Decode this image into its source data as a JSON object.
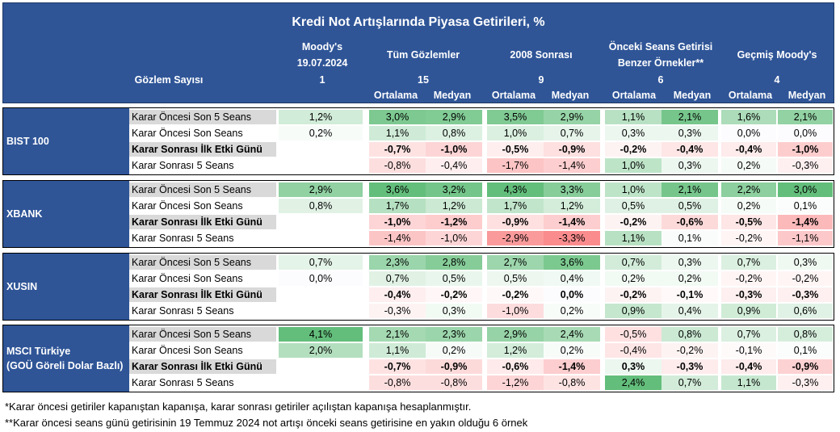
{
  "title": "Kredi Not Artışlarında Piyasa Getirileri, %",
  "header": {
    "obs_label": "Gözlem Sayısı",
    "columns": [
      {
        "name": "Moody's",
        "name2": "19.07.2024",
        "count": "1"
      },
      {
        "name": "Tüm Gözlemler",
        "name2": "",
        "count": "15"
      },
      {
        "name": "2008 Sonrası",
        "name2": "",
        "count": "9"
      },
      {
        "name": "Önceki Seans Getirisi",
        "name2": "Benzer Örnekler**",
        "count": "6"
      },
      {
        "name": "Geçmiş Moody's",
        "name2": "",
        "count": "4"
      }
    ],
    "sub_avg": "Ortalama",
    "sub_med": "Medyan"
  },
  "blocks": [
    {
      "name": "BIST 100",
      "rows": [
        {
          "label": "Karar Öncesi Son 5 Seans",
          "values": [
            "1,2%",
            "3,0%",
            "2,9%",
            "3,5%",
            "2,9%",
            "1,1%",
            "2,1%",
            "1,6%",
            "2,1%"
          ]
        },
        {
          "label": "Karar Öncesi Son Seans",
          "values": [
            "0,2%",
            "1,1%",
            "0,8%",
            "1,0%",
            "0,7%",
            "0,3%",
            "0,3%",
            "0,0%",
            "0,0%"
          ]
        },
        {
          "label": "Karar Sonrası İlk Etki Günü",
          "values": [
            "",
            "-0,7%",
            "-1,0%",
            "-0,5%",
            "-0,9%",
            "-0,2%",
            "-0,4%",
            "-0,4%",
            "-1,0%"
          ]
        },
        {
          "label": "Karar Sonrası 5 Seans",
          "values": [
            "",
            "-0,8%",
            "-0,4%",
            "-1,7%",
            "-1,4%",
            "1,0%",
            "0,3%",
            "0,2%",
            "-0,3%"
          ]
        }
      ]
    },
    {
      "name": "XBANK",
      "rows": [
        {
          "label": "Karar Öncesi Son 5 Seans",
          "values": [
            "2,9%",
            "3,6%",
            "3,2%",
            "4,3%",
            "3,3%",
            "1,0%",
            "2,1%",
            "2,2%",
            "3,0%"
          ]
        },
        {
          "label": "Karar Öncesi Son Seans",
          "values": [
            "0,8%",
            "1,7%",
            "1,2%",
            "1,7%",
            "1,2%",
            "0,5%",
            "0,5%",
            "0,2%",
            "0,1%"
          ]
        },
        {
          "label": "Karar Sonrası İlk Etki Günü",
          "values": [
            "",
            "-1,0%",
            "-1,2%",
            "-0,9%",
            "-1,4%",
            "-0,2%",
            "-0,6%",
            "-0,5%",
            "-1,4%"
          ]
        },
        {
          "label": "Karar Sonrası 5 Seans",
          "values": [
            "",
            "-1,4%",
            "-1,0%",
            "-2,9%",
            "-3,3%",
            "1,1%",
            "0,1%",
            "-0,2%",
            "-1,1%"
          ]
        }
      ]
    },
    {
      "name": "XUSIN",
      "rows": [
        {
          "label": "Karar Öncesi Son 5 Seans",
          "values": [
            "0,7%",
            "2,3%",
            "2,8%",
            "2,7%",
            "3,6%",
            "0,7%",
            "0,3%",
            "0,7%",
            "0,3%"
          ]
        },
        {
          "label": "Karar Öncesi Son Seans",
          "values": [
            "0,0%",
            "0,7%",
            "0,5%",
            "0,5%",
            "0,4%",
            "0,2%",
            "0,2%",
            "-0,2%",
            "-0,2%"
          ]
        },
        {
          "label": "Karar Sonrası İlk Etki Günü",
          "values": [
            "",
            "-0,4%",
            "-0,2%",
            "-0,2%",
            "0,0%",
            "-0,2%",
            "-0,1%",
            "-0,3%",
            "-0,3%"
          ]
        },
        {
          "label": "Karar Sonrası 5 Seans",
          "values": [
            "",
            "-0,3%",
            "0,3%",
            "-1,0%",
            "0,2%",
            "0,9%",
            "0,4%",
            "0,9%",
            "0,6%"
          ]
        }
      ]
    },
    {
      "name": "MSCI Türkiye",
      "name2": "(GOÜ Göreli Dolar Bazlı)",
      "rows": [
        {
          "label": "Karar Öncesi Son 5 Seans",
          "values": [
            "4,1%",
            "2,1%",
            "2,3%",
            "2,9%",
            "2,4%",
            "-0,5%",
            "0,8%",
            "0,7%",
            "0,8%"
          ]
        },
        {
          "label": "Karar Öncesi Son Seans",
          "values": [
            "2,0%",
            "1,1%",
            "0,2%",
            "1,2%",
            "0,2%",
            "-0,4%",
            "-0,2%",
            "-0,1%",
            "0,1%"
          ]
        },
        {
          "label": "Karar Sonrası İlk Etki Günü",
          "values": [
            "",
            "-0,7%",
            "-0,9%",
            "-0,6%",
            "-1,4%",
            "0,3%",
            "-0,3%",
            "-0,4%",
            "-0,9%"
          ]
        },
        {
          "label": "Karar Sonrası 5 Seans",
          "values": [
            "",
            "-0,8%",
            "-0,8%",
            "-1,2%",
            "-0,8%",
            "2,4%",
            "0,7%",
            "1,1%",
            "-0,3%"
          ]
        }
      ]
    }
  ],
  "footnotes": [
    "*Karar öncesi getiriler kapanıştan kapanışa, karar sonrası getiriler açılıştan kapanışa hesaplanmıştır.",
    "**Karar öncesi seans günü getirisinin 19 Temmuz 2024 not artışı önceki seans getirisine en yakın olduğu 6 örnek"
  ]
}
